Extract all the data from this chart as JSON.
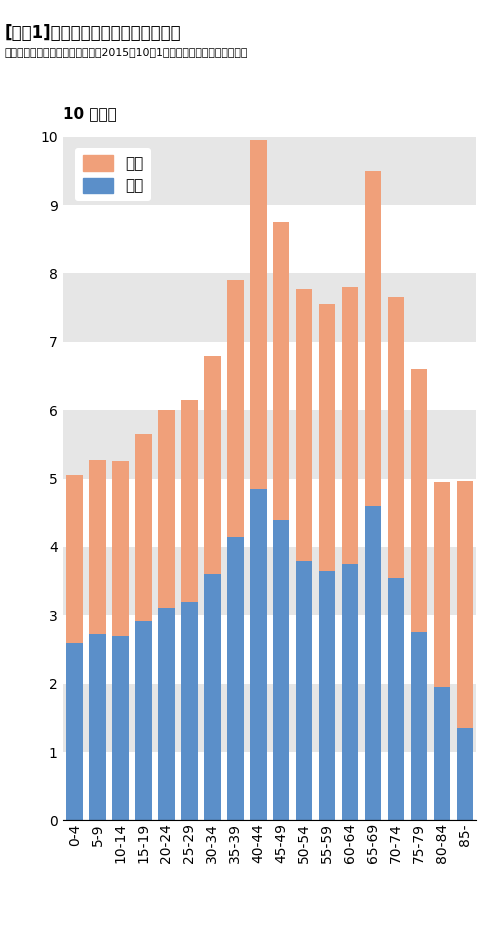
{
  "title_bracket": "[図表1]",
  "title_main": "性別・年齢階層別の人口分布",
  "subtitle": "出所：総務省統計局「人口推計（2015年10月1日現在：概算値）」より作成",
  "ylabel": "百万人",
  "ylabel_prefix": "10",
  "age_groups": [
    "0-4",
    "5-9",
    "10-14",
    "15-19",
    "20-24",
    "25-29",
    "30-34",
    "35-39",
    "40-44",
    "45-49",
    "50-54",
    "55-59",
    "60-64",
    "65-69",
    "70-74",
    "75-79",
    "80-84",
    "85-"
  ],
  "male": [
    2.6,
    2.72,
    2.7,
    2.92,
    3.1,
    3.2,
    3.6,
    4.15,
    4.85,
    4.4,
    3.8,
    3.65,
    3.75,
    4.6,
    3.55,
    2.75,
    1.95,
    1.35
  ],
  "female": [
    2.45,
    2.55,
    2.55,
    2.73,
    2.9,
    2.95,
    3.2,
    3.75,
    5.1,
    4.35,
    3.98,
    3.9,
    4.05,
    4.9,
    4.1,
    3.85,
    3.0,
    3.62
  ],
  "male_color": "#5b8fc9",
  "female_color": "#f0a07a",
  "stripe_color": "#e6e6e6",
  "ylim": [
    0,
    10
  ],
  "yticks": [
    0,
    1,
    2,
    3,
    4,
    5,
    6,
    7,
    8,
    9,
    10
  ],
  "legend_female": "女性",
  "legend_male": "男性",
  "bar_width": 0.72
}
